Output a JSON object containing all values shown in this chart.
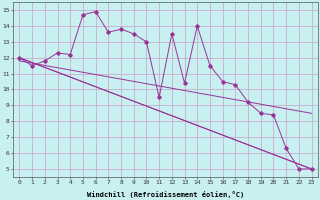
{
  "bg_color": "#c8f0f0",
  "grid_color": "#c8a0c8",
  "line_color": "#993399",
  "marker_color": "#993399",
  "jagged_x": [
    0,
    1,
    2,
    3,
    4,
    5,
    6,
    7,
    8,
    9,
    10,
    11,
    12,
    13,
    14,
    15,
    16,
    17,
    18,
    19,
    20,
    21,
    22,
    23
  ],
  "jagged_y": [
    12.0,
    11.5,
    11.8,
    12.3,
    12.2,
    14.7,
    14.9,
    13.6,
    13.8,
    13.5,
    13.0,
    9.5,
    13.5,
    10.4,
    14.0,
    11.5,
    10.5,
    10.3,
    9.2,
    8.5,
    8.4,
    6.3,
    5.0,
    5.0
  ],
  "line1_x": [
    0,
    23
  ],
  "line1_y": [
    12.0,
    5.0
  ],
  "line2_x": [
    0,
    23
  ],
  "line2_y": [
    12.0,
    5.0
  ],
  "line3_x": [
    0,
    23
  ],
  "line3_y": [
    11.8,
    8.5
  ],
  "xlim": [
    -0.5,
    23.5
  ],
  "ylim": [
    4.5,
    15.5
  ],
  "yticks": [
    5,
    6,
    7,
    8,
    9,
    10,
    11,
    12,
    13,
    14,
    15
  ],
  "xticks": [
    0,
    1,
    2,
    3,
    4,
    5,
    6,
    7,
    8,
    9,
    10,
    11,
    12,
    13,
    14,
    15,
    16,
    17,
    18,
    19,
    20,
    21,
    22,
    23
  ],
  "xlabel": "Windchill (Refroidissement éolien,°C)",
  "tick_fontsize": 4.5,
  "xlabel_fontsize": 5.0
}
